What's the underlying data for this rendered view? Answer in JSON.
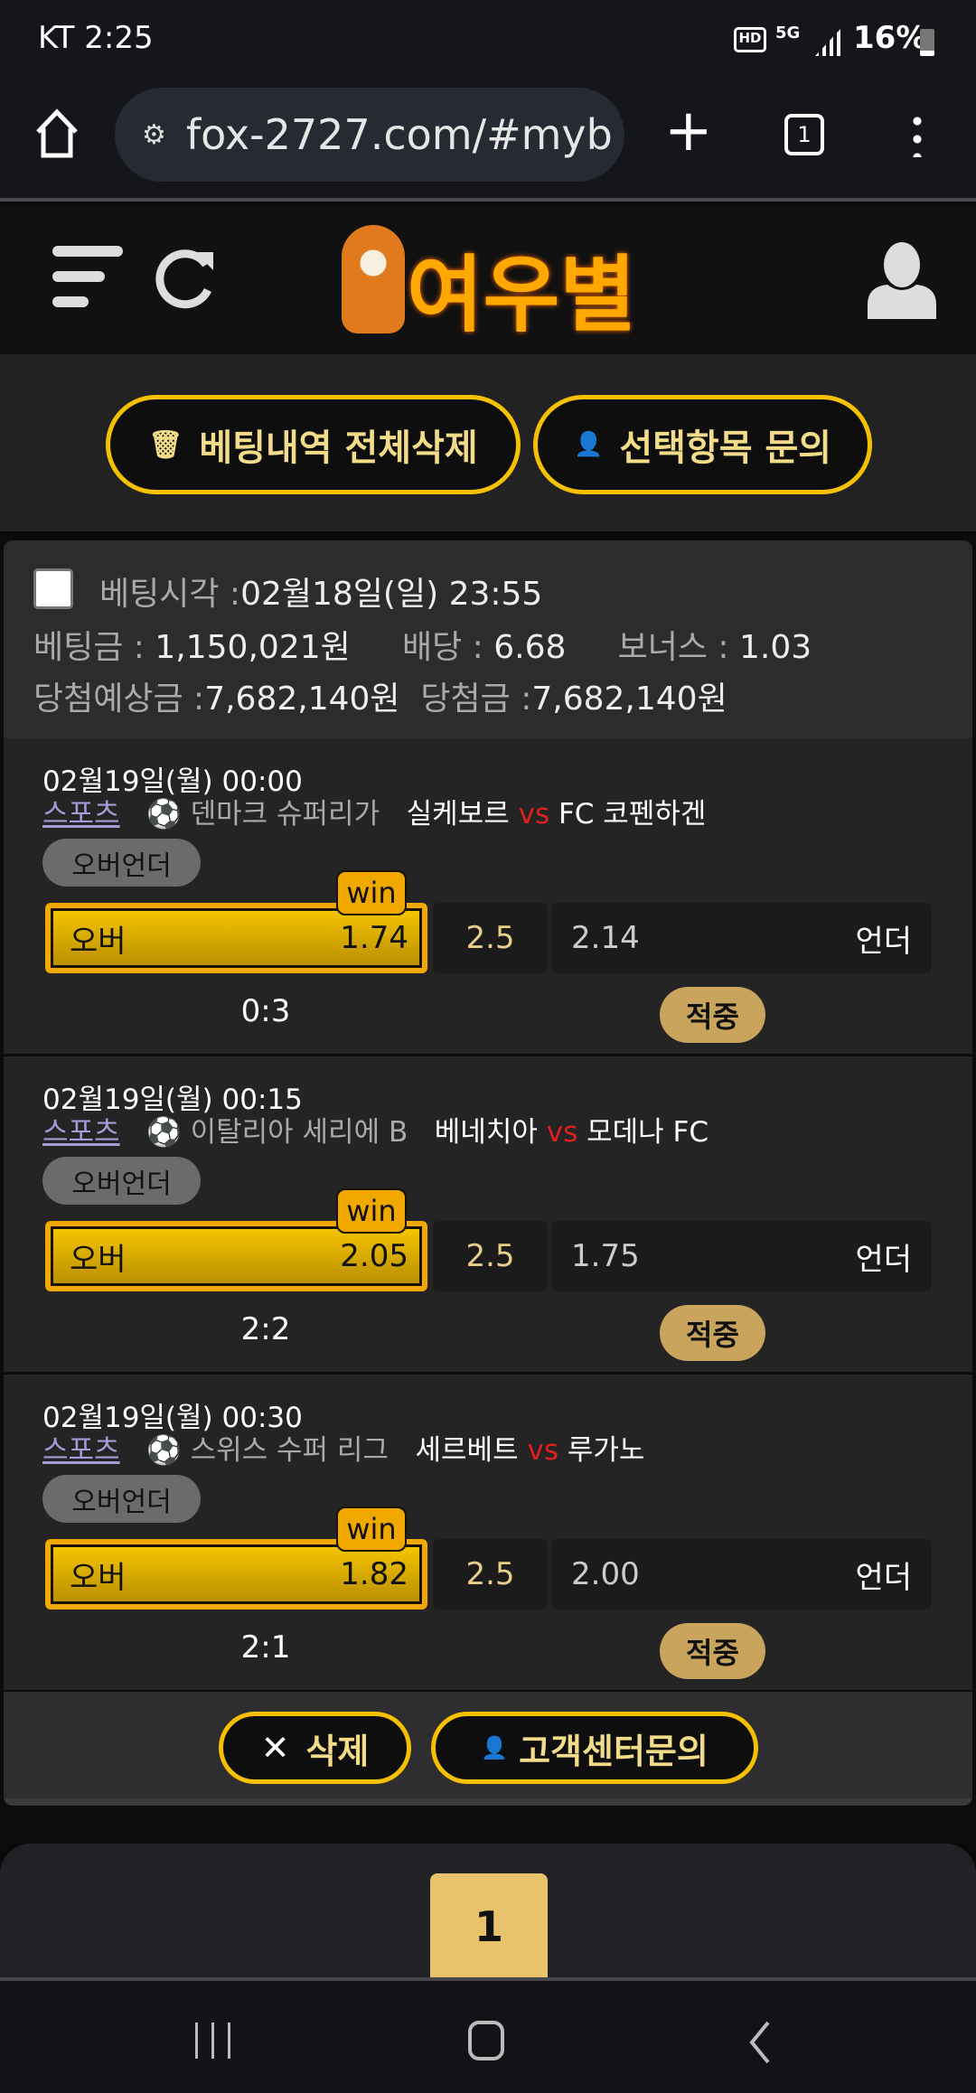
{
  "status_bar": {
    "carrier_time": "KT 2:25",
    "battery": "16%",
    "icons": [
      "hd-voice-icon",
      "5g-icon",
      "signal-icon",
      "battery-icon"
    ]
  },
  "browser": {
    "url": "fox-2727.com/#myb",
    "tab_count": "1"
  },
  "header": {
    "logo_text": "여우별"
  },
  "actions": {
    "delete_all": "베팅내역 전체삭제",
    "inquire_selected": "선택항목 문의"
  },
  "bet": {
    "time_label": "베팅시각 :",
    "time": "02월18일(일) 23:55",
    "amount_label": "베팅금 :",
    "amount": "1,150,021원",
    "odds_label": "배당 :",
    "odds": "6.68",
    "bonus_label": "보너스 :",
    "bonus": "1.03",
    "expected_label": "당첨예상금 :",
    "expected": "7,682,140원",
    "won_label": "당첨금 :",
    "won": "7,682,140원",
    "matches": [
      {
        "datetime": "02월19일(월) 00:00",
        "category": "스포츠",
        "league": "덴마크 슈퍼리가",
        "home": "실케보르",
        "vs": "vs",
        "away": "FC 코펜하겐",
        "market": "오버언더",
        "over_label": "오버",
        "over_odds": "1.74",
        "line": "2.5",
        "under_odds": "2.14",
        "under_label": "언더",
        "win_badge": "win",
        "score": "0:3",
        "result": "적중"
      },
      {
        "datetime": "02월19일(월) 00:15",
        "category": "스포츠",
        "league": "이탈리아 세리에 B",
        "home": "베네치아",
        "vs": "vs",
        "away": "모데나 FC",
        "market": "오버언더",
        "over_label": "오버",
        "over_odds": "2.05",
        "line": "2.5",
        "under_odds": "1.75",
        "under_label": "언더",
        "win_badge": "win",
        "score": "2:2",
        "result": "적중"
      },
      {
        "datetime": "02월19일(월) 00:30",
        "category": "스포츠",
        "league": "스위스 수퍼 리그",
        "home": "세르베트",
        "vs": "vs",
        "away": "루가노",
        "market": "오버언더",
        "over_label": "오버",
        "over_odds": "1.82",
        "line": "2.5",
        "under_odds": "2.00",
        "under_label": "언더",
        "win_badge": "win",
        "score": "2:1",
        "result": "적중"
      }
    ],
    "delete_label": "삭제",
    "support_label": "고객센터문의"
  },
  "pagination": {
    "current": "1"
  },
  "colors": {
    "accent": "#f5c000",
    "gold": "#e8c36c",
    "vs": "#e0201e",
    "category": "#a79bd6"
  }
}
